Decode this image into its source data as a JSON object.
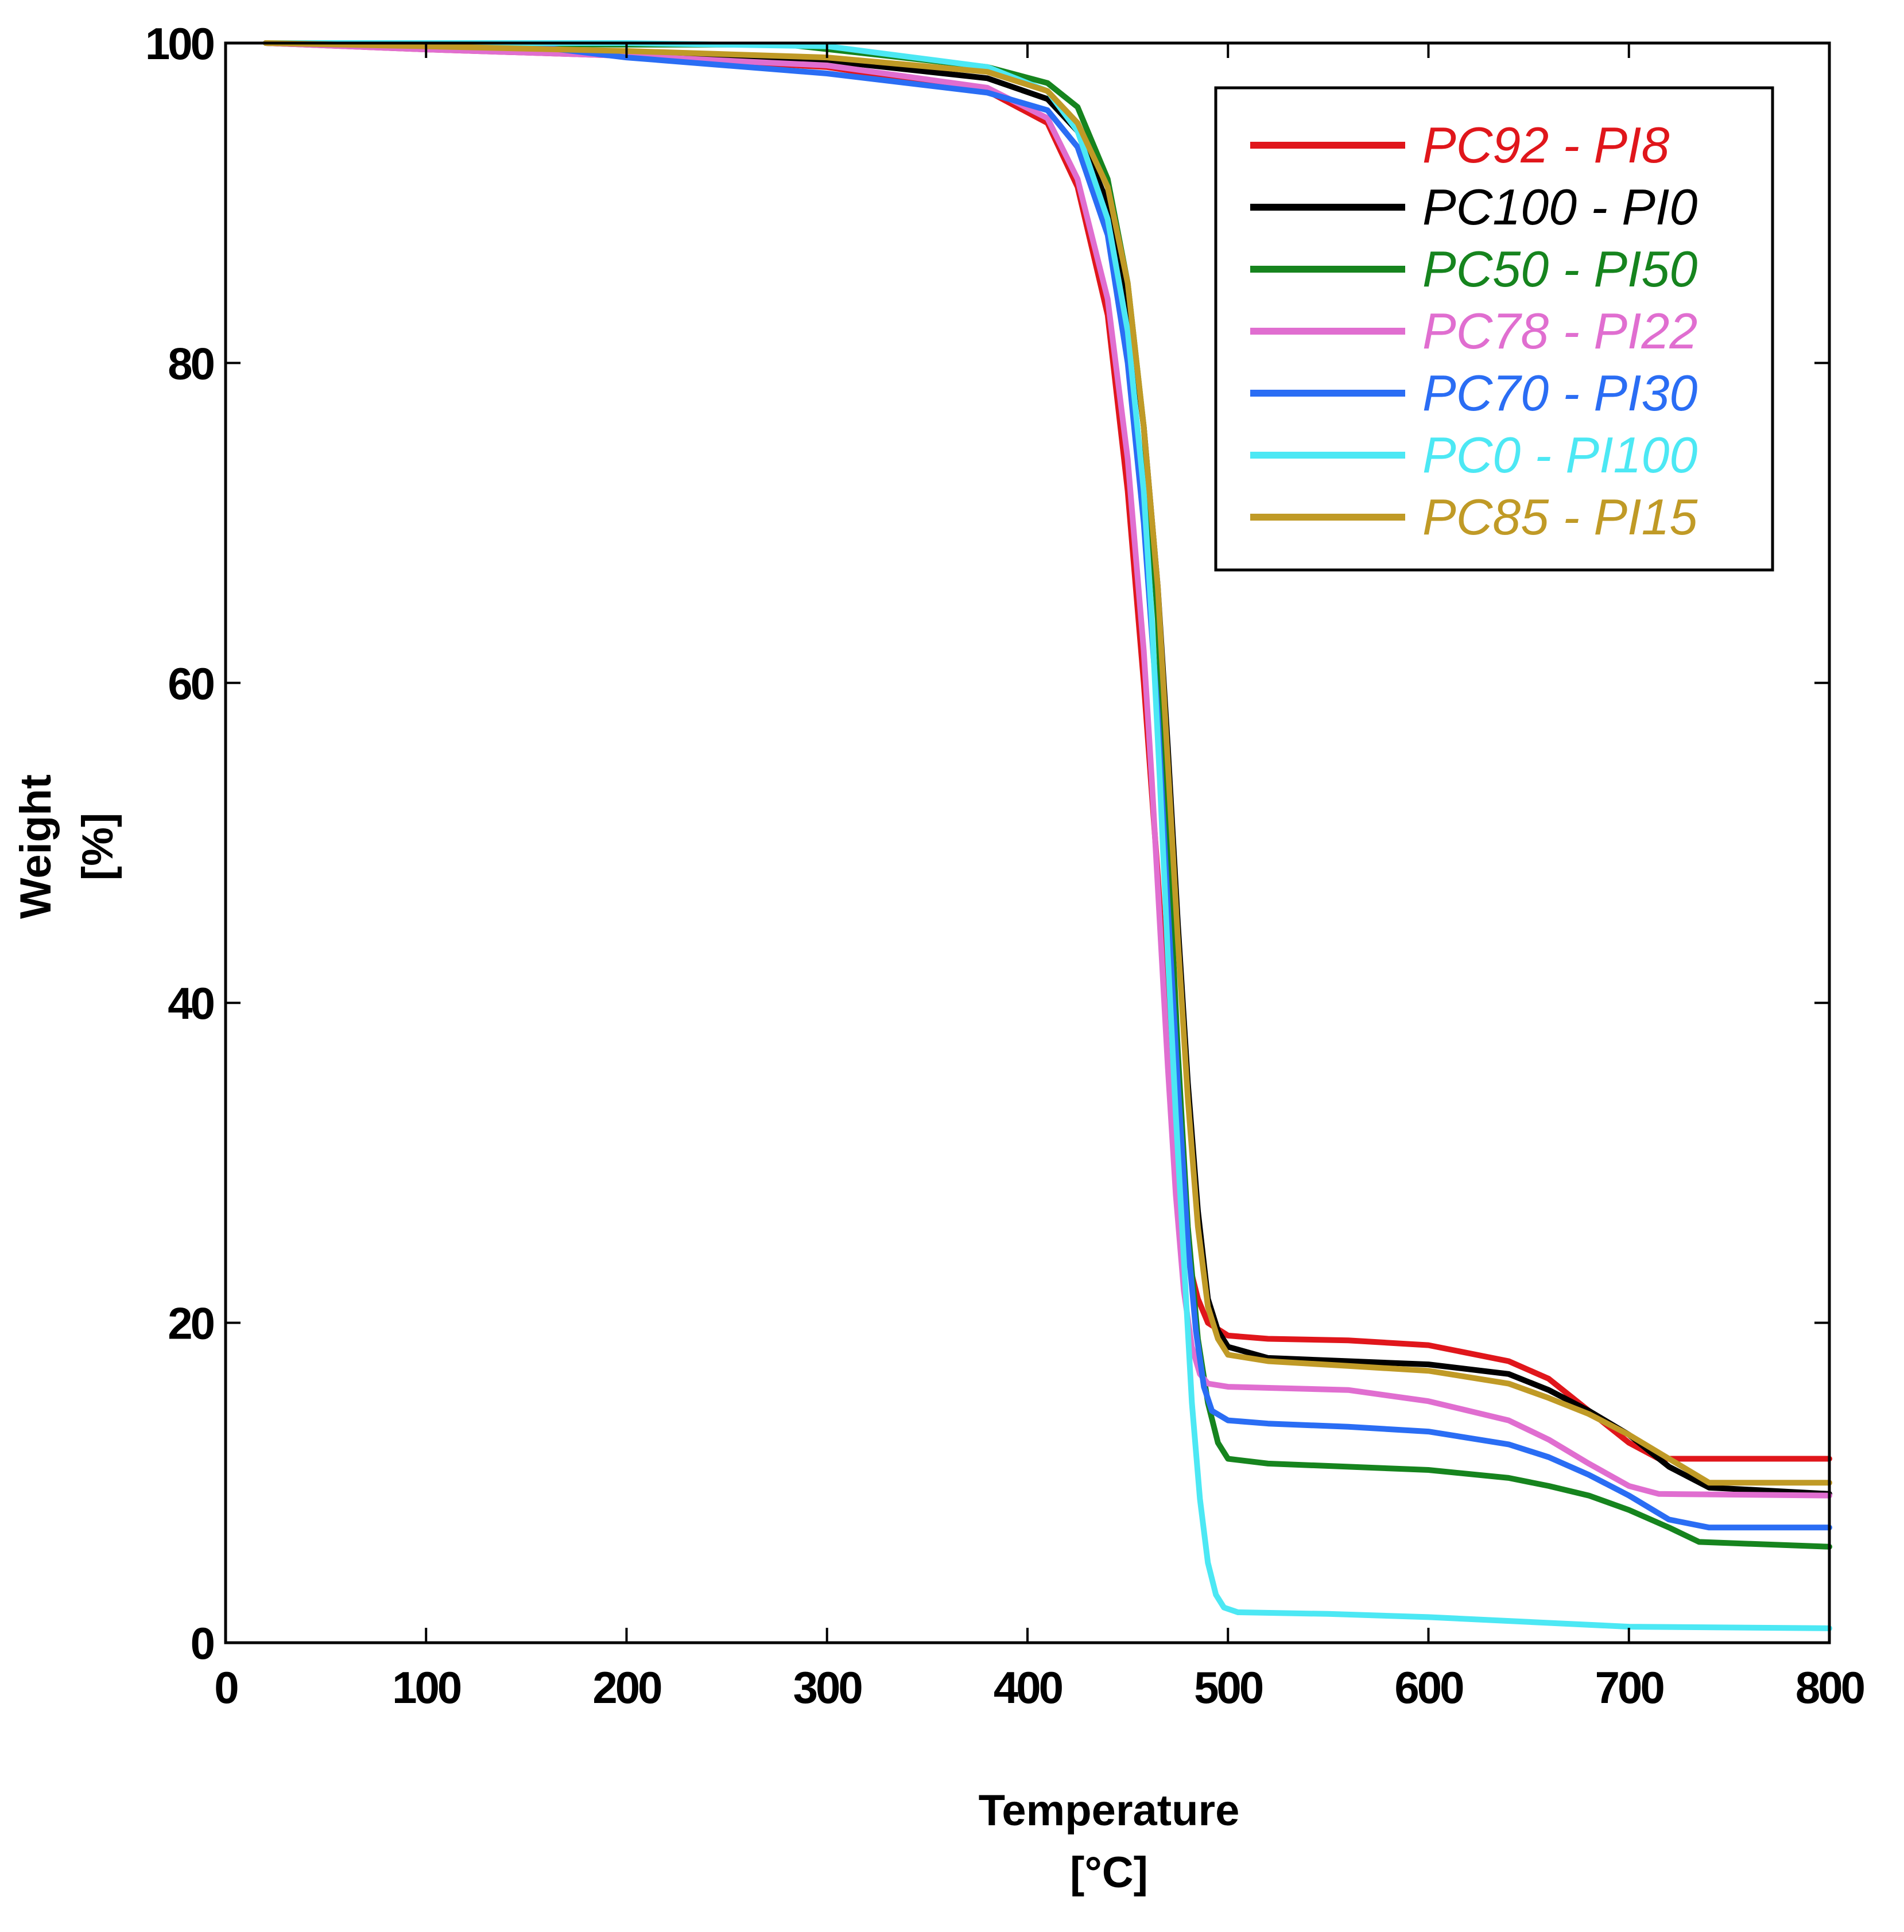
{
  "chart_data": {
    "type": "line",
    "title": "",
    "xlabel": "Temperature",
    "xunit": "[°C]",
    "ylabel": "Weight",
    "yunit": "[%]",
    "xlim": [
      0,
      800
    ],
    "ylim": [
      0,
      100
    ],
    "xticks": [
      0,
      100,
      200,
      300,
      400,
      500,
      600,
      700,
      800
    ],
    "xtick_labels": [
      "0",
      "100",
      "200",
      "300",
      "400",
      "500",
      "600",
      "700",
      "800"
    ],
    "yticks": [
      0,
      20,
      40,
      60,
      80,
      100
    ],
    "ytick_labels": [
      "0",
      "20",
      "40",
      "60",
      "80",
      "100"
    ],
    "grid": false,
    "legend_position": "top-right",
    "series": [
      {
        "name": "PC92 - PI8",
        "color": "#e0161b",
        "x": [
          20,
          100,
          200,
          300,
          380,
          410,
          425,
          440,
          450,
          458,
          465,
          470,
          475,
          480,
          485,
          490,
          500,
          520,
          560,
          600,
          640,
          660,
          680,
          700,
          715,
          740,
          800
        ],
        "y": [
          100,
          99.6,
          99.2,
          98.5,
          97,
          95,
          91,
          83,
          72,
          60,
          48,
          38,
          30,
          24,
          21.5,
          20,
          19.2,
          19,
          18.9,
          18.6,
          17.6,
          16.5,
          14.5,
          12.5,
          11.5,
          11.5,
          11.5
        ]
      },
      {
        "name": "PC100 - PI0",
        "color": "#000000",
        "x": [
          20,
          100,
          200,
          300,
          380,
          410,
          425,
          440,
          450,
          458,
          465,
          470,
          475,
          480,
          485,
          490,
          495,
          500,
          520,
          560,
          600,
          640,
          660,
          680,
          700,
          720,
          740,
          800
        ],
        "y": [
          100,
          99.7,
          99.4,
          98.9,
          97.8,
          96.5,
          94.5,
          90,
          84,
          76,
          66,
          56,
          45,
          35,
          27,
          21.5,
          19.5,
          18.5,
          17.8,
          17.6,
          17.4,
          16.8,
          15.8,
          14.5,
          13,
          11,
          9.7,
          9.3
        ]
      },
      {
        "name": "PC50 - PI50",
        "color": "#16841e",
        "x": [
          20,
          100,
          200,
          280,
          380,
          410,
          425,
          440,
          450,
          458,
          465,
          470,
          475,
          480,
          485,
          490,
          495,
          500,
          520,
          560,
          600,
          640,
          660,
          680,
          700,
          720,
          735,
          800
        ],
        "y": [
          100,
          100,
          99.9,
          99.9,
          98.5,
          97.5,
          96,
          91.5,
          85,
          76,
          64,
          50,
          37,
          26,
          19,
          15,
          12.5,
          11.5,
          11.2,
          11,
          10.8,
          10.3,
          9.8,
          9.2,
          8.3,
          7.2,
          6.3,
          6
        ]
      },
      {
        "name": "PC78 - PI22",
        "color": "#e06ed0",
        "x": [
          20,
          100,
          200,
          300,
          380,
          410,
          425,
          440,
          450,
          458,
          462,
          466,
          470,
          474,
          478,
          482,
          486,
          490,
          500,
          560,
          600,
          640,
          660,
          680,
          700,
          715,
          800
        ],
        "y": [
          100,
          99.6,
          99.2,
          98.6,
          97.2,
          95.3,
          91.5,
          84,
          74,
          62,
          54,
          45,
          36,
          28,
          22,
          18.5,
          16.8,
          16.2,
          16,
          15.8,
          15.1,
          13.9,
          12.7,
          11.2,
          9.8,
          9.3,
          9.2
        ]
      },
      {
        "name": "PC70 - PI30",
        "color": "#2a6df4",
        "x": [
          20,
          100,
          140,
          200,
          300,
          380,
          410,
          425,
          440,
          450,
          458,
          465,
          470,
          475,
          480,
          484,
          488,
          492,
          500,
          520,
          560,
          600,
          640,
          660,
          680,
          700,
          720,
          740,
          800
        ],
        "y": [
          100,
          100,
          100,
          99.1,
          98.1,
          96.9,
          95.8,
          93.5,
          88,
          80,
          70,
          58,
          46,
          35,
          25,
          19.5,
          16,
          14.5,
          13.9,
          13.7,
          13.5,
          13.2,
          12.4,
          11.6,
          10.5,
          9.2,
          7.7,
          7.2,
          7.2
        ]
      },
      {
        "name": "PC0 - PI100",
        "color": "#4ce8f4",
        "x": [
          20,
          100,
          200,
          300,
          380,
          410,
          425,
          440,
          450,
          458,
          462,
          466,
          470,
          474,
          478,
          482,
          486,
          490,
          494,
          498,
          505,
          550,
          600,
          650,
          700,
          800
        ],
        "y": [
          100,
          100,
          100,
          99.8,
          98.5,
          97,
          94.5,
          89,
          82,
          72,
          64,
          54,
          43,
          33,
          24,
          15,
          9,
          5,
          3,
          2.2,
          1.9,
          1.8,
          1.6,
          1.3,
          1.0,
          0.9
        ]
      },
      {
        "name": "PC85 - PI15",
        "color": "#c09a26",
        "x": [
          20,
          100,
          200,
          300,
          380,
          410,
          425,
          440,
          450,
          458,
          465,
          470,
          475,
          480,
          485,
          490,
          495,
          500,
          520,
          560,
          600,
          640,
          660,
          680,
          700,
          720,
          740,
          800
        ],
        "y": [
          100,
          99.8,
          99.5,
          99.1,
          98.2,
          97,
          95,
          91,
          85,
          76,
          66,
          55,
          44,
          34,
          26,
          21,
          19,
          18,
          17.6,
          17.3,
          17,
          16.2,
          15.3,
          14.3,
          13,
          11.5,
          10,
          10
        ]
      }
    ]
  }
}
